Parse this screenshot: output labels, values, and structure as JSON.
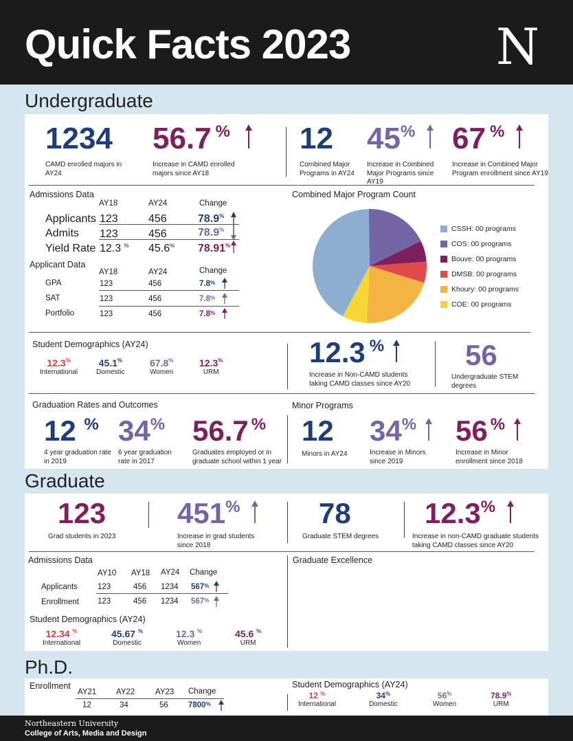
{
  "header": {
    "title": "Quick Facts 2023",
    "logo": "N"
  },
  "undergrad": {
    "heading": "Undergraduate",
    "stats": [
      {
        "value": "1234",
        "pct": "",
        "caption": "CAMD enrolled majors in AY24",
        "color": "#1f3e78"
      },
      {
        "value": "56.7",
        "pct": "%",
        "caption": "Increase in CAMD enrolled majors since AY18",
        "color": "#7f1f5b"
      },
      {
        "value": "12",
        "pct": "",
        "caption": "Combined Major Programs in AY24",
        "color": "#1f3e78"
      },
      {
        "value": "45",
        "pct": "%",
        "caption": "Increase in Combined Major Programs since AY19",
        "color": "#7466a6"
      },
      {
        "value": "67",
        "pct": "%",
        "caption": "Increase in Combined Major Program enrollment since AY19",
        "color": "#7f1f5b"
      }
    ],
    "admissions": {
      "heading": "Admissions Data",
      "cols": [
        "AY18",
        "AY24",
        "Change"
      ],
      "rows": [
        {
          "label": "Applicants",
          "a": "123",
          "b": "456",
          "change": "78.9",
          "unit": "%"
        },
        {
          "label": "Admits",
          "a": "123",
          "b": "456",
          "change": "78.9",
          "unit": "%"
        },
        {
          "label": "Yield Rate",
          "a": "12.3",
          "a_unit": "%",
          "b": "45.6",
          "b_unit": "%",
          "change": "78.91",
          "unit": "%"
        }
      ]
    },
    "applicant": {
      "heading": "Applicant Data",
      "cols": [
        "AY18",
        "AY24",
        "Change"
      ],
      "rows": [
        {
          "label": "GPA",
          "a": "123",
          "b": "456",
          "change": "7.8",
          "unit": "%"
        },
        {
          "label": "SAT",
          "a": "123",
          "b": "456",
          "change": "7.8",
          "unit": "%"
        },
        {
          "label": "Portfolio",
          "a": "123",
          "b": "456",
          "change": "7.8",
          "unit": "%"
        }
      ]
    },
    "pie_heading": "Combined Major Program Count",
    "demographics": {
      "heading": "Student Demographics (AY24)",
      "items": [
        {
          "value": "12.3",
          "unit": "%",
          "label": "International",
          "color": "#d83a3f"
        },
        {
          "value": "45.1",
          "unit": "%",
          "label": "Domestic",
          "color": "#1f3e78"
        },
        {
          "value": "67.8",
          "unit": "%",
          "label": "Women",
          "color": "#7466a6"
        },
        {
          "value": "12.3",
          "unit": "%",
          "label": "URM",
          "color": "#7f1f5b"
        }
      ]
    },
    "noncamd": {
      "value": "12.3",
      "pct": "%",
      "caption": "Increase in Non-CAMD students taking CAMD classes since AY20"
    },
    "stem": {
      "value": "56",
      "caption": "Undergraduate STEM degrees"
    },
    "graduation": {
      "heading": "Graduation Rates and Outcomes",
      "items": [
        {
          "value": "12",
          "pct": "%",
          "caption": "4 year graduation rate in 2019",
          "color": "#1f3e78"
        },
        {
          "value": "34",
          "pct": "%",
          "caption": "6 year graduation rate in 2017",
          "color": "#7466a6"
        },
        {
          "value": "56.7",
          "pct": "%",
          "caption": "Graduates employed or in graduate school within 1 year",
          "color": "#7f1f5b"
        }
      ]
    },
    "minor": {
      "heading": "Minor Programs",
      "items": [
        {
          "value": "12",
          "pct": "",
          "caption": "Minors in AY24",
          "color": "#1f3e78"
        },
        {
          "value": "34",
          "pct": "%",
          "caption": "Increase in Minors since 2019",
          "color": "#7466a6"
        },
        {
          "value": "56",
          "pct": "%",
          "caption": "Increase in Minor enrollment since 2018",
          "color": "#7f1f5b"
        }
      ]
    }
  },
  "chart_data": {
    "type": "pie",
    "title": "Combined Major Program Count",
    "categories": [
      "CSSH: 00 programs",
      "COS: 00 programs",
      "Bouve: 00 programs",
      "DMSB: 00 programs",
      "Khoury: 00 programs",
      "COE: 00 programs"
    ],
    "values": [
      42,
      18,
      6,
      6,
      21,
      7
    ],
    "colors": [
      "#8eaed0",
      "#7466a6",
      "#7f1f5b",
      "#e04b4b",
      "#f2b544",
      "#f7d634"
    ],
    "legend": "right"
  },
  "graduate": {
    "heading": "Graduate",
    "stats": [
      {
        "value": "123",
        "pct": "",
        "caption": "Grad students in 2023",
        "color": "#7f1f5b"
      },
      {
        "value": "451",
        "pct": "%",
        "caption": "Increase in grad students since 2018",
        "color": "#7466a6"
      },
      {
        "value": "78",
        "pct": "",
        "caption": "Graduate STEM degrees",
        "color": "#1f3e78"
      },
      {
        "value": "12.3",
        "pct": "%",
        "caption": "Increase in non-CAMD graduate students taking CAMD classes since AY20",
        "color": "#7f1f5b"
      }
    ],
    "admissions": {
      "heading": "Admissions Data",
      "cols": [
        "AY10",
        "AY18",
        "AY24",
        "Change"
      ],
      "rows": [
        {
          "label": "Applicants",
          "a": "123",
          "b": "456",
          "c": "1234",
          "change": "567",
          "unit": "%"
        },
        {
          "label": "Enrollment",
          "a": "123",
          "b": "456",
          "c": "1234",
          "change": "567",
          "unit": "%"
        }
      ]
    },
    "demographics": {
      "heading": "Student Demographics (AY24)",
      "items": [
        {
          "value": "12.34",
          "unit": "%",
          "label": "International",
          "color": "#d83a3f"
        },
        {
          "value": "45.67",
          "unit": "%",
          "label": "Domestic",
          "color": "#1f3e78"
        },
        {
          "value": "12.3",
          "unit": "%",
          "label": "Women",
          "color": "#7466a6"
        },
        {
          "value": "45.6",
          "unit": "%",
          "label": "URM",
          "color": "#7f1f5b"
        }
      ]
    },
    "excellence_heading": "Graduate Excellence"
  },
  "phd": {
    "heading": "Ph.D.",
    "enrollment": {
      "heading": "Enrollment",
      "cols": [
        "AY21",
        "AY22",
        "AY23",
        "Change"
      ],
      "values": [
        "12",
        "34",
        "56",
        "7800"
      ],
      "unit": "%"
    },
    "demographics": {
      "heading": "Student Demographics (AY24)",
      "items": [
        {
          "value": "12",
          "unit": "%",
          "label": "International",
          "color": "#d83a3f"
        },
        {
          "value": "34",
          "unit": "%",
          "label": "Domestic",
          "color": "#1f3e78"
        },
        {
          "value": "56",
          "unit": "%",
          "label": "Women",
          "color": "#7466a6"
        },
        {
          "value": "78.9",
          "unit": "%",
          "label": "URM",
          "color": "#7f1f5b"
        }
      ]
    }
  },
  "footer": {
    "line1": "Northeastern University",
    "line2": "College of Arts, Media and Design"
  }
}
